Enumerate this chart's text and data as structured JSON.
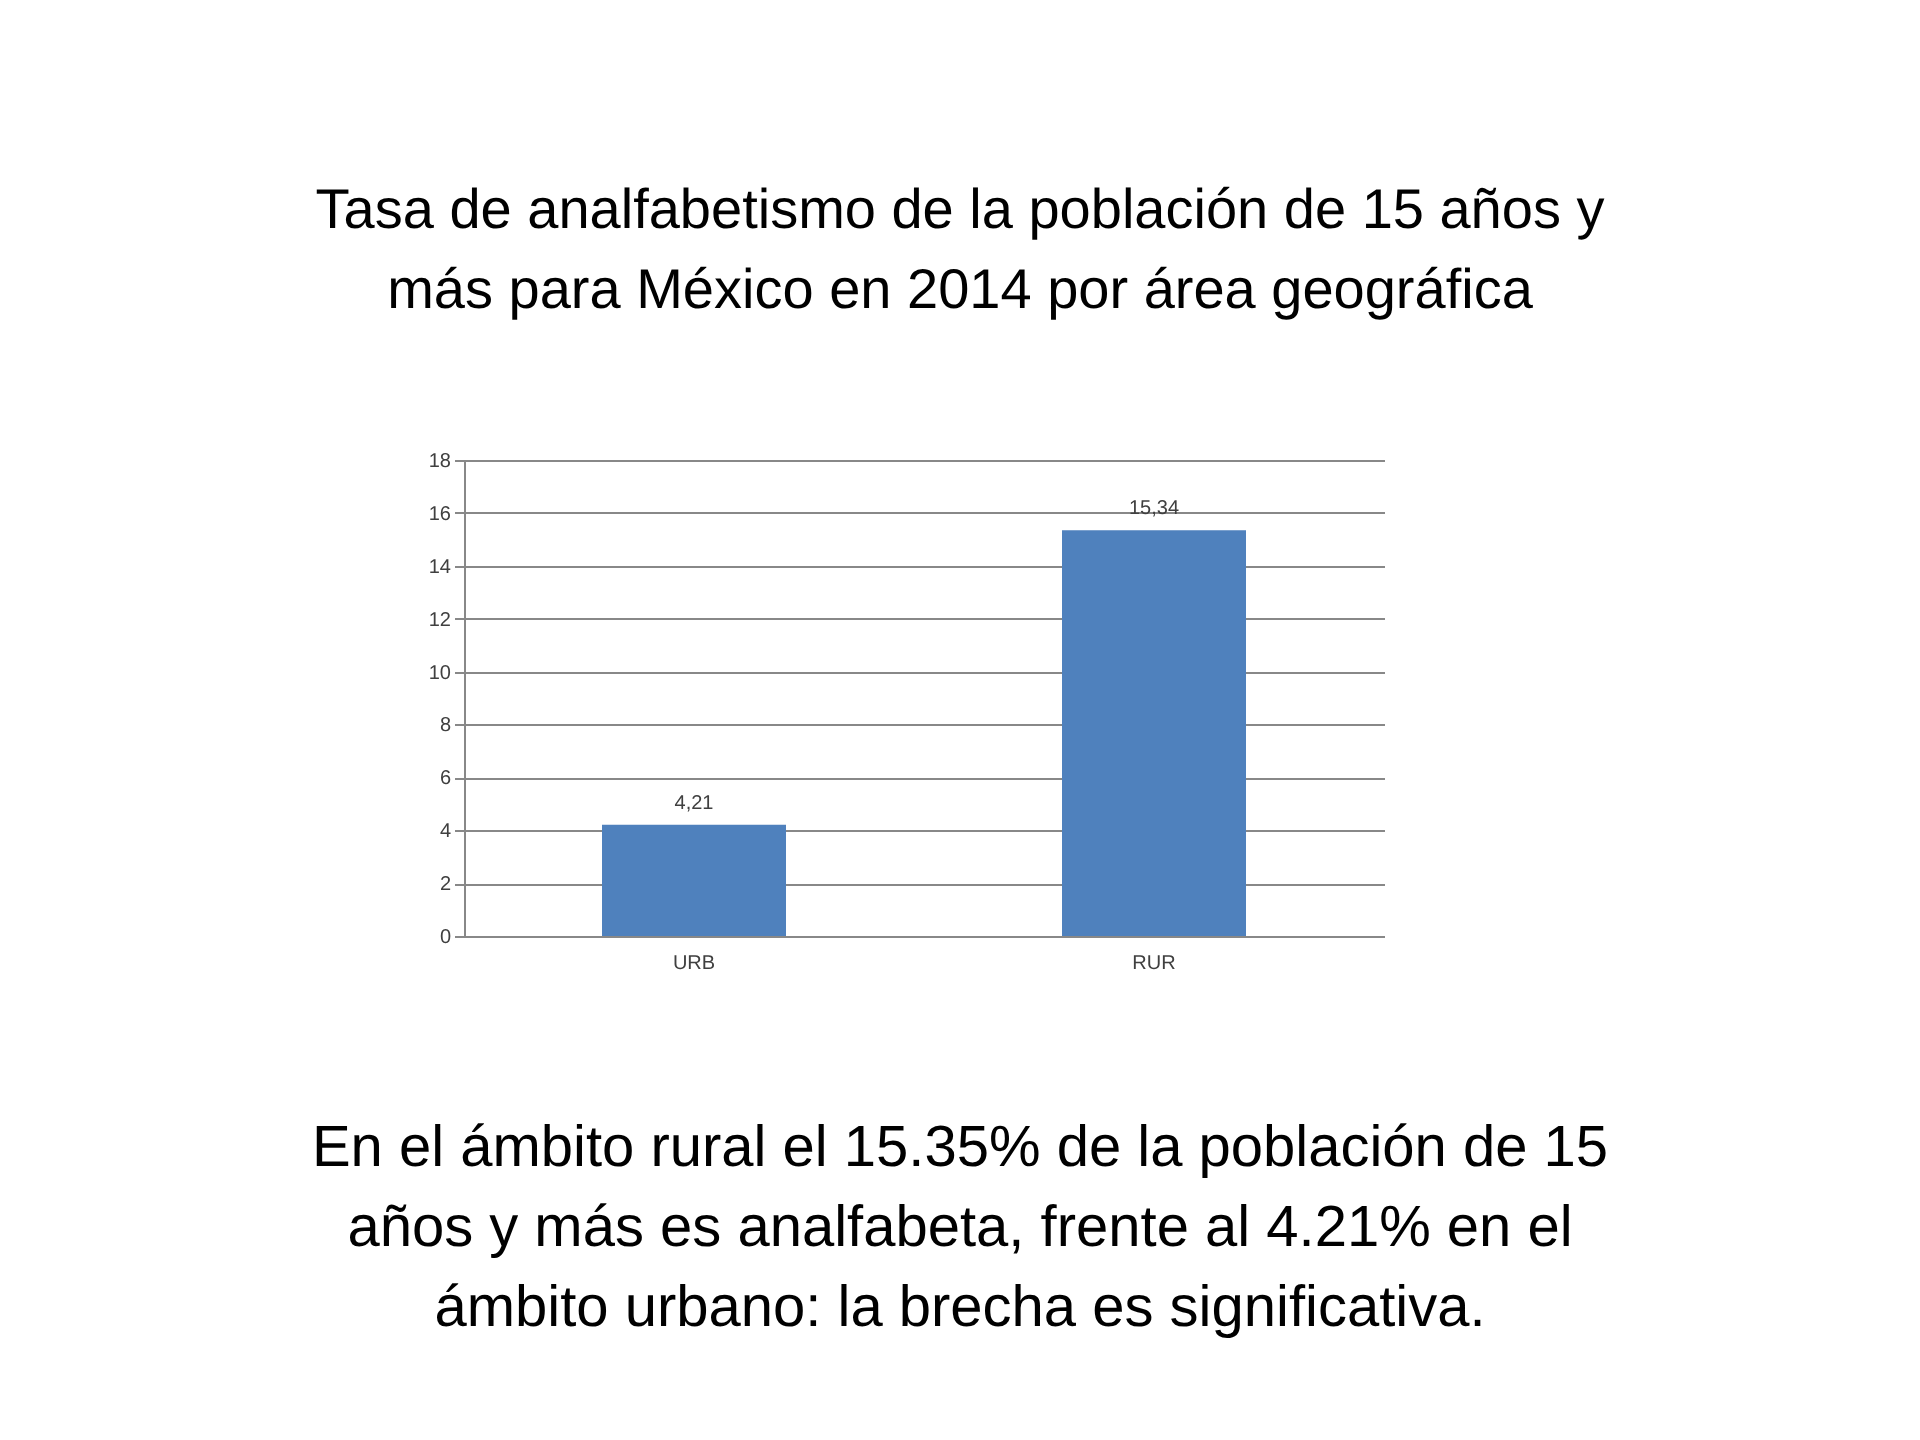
{
  "chart_data": {
    "type": "bar",
    "title": "Tasa de analfabetismo de la población de 15 años y más para México en 2014 por área geográfica",
    "categories": [
      "URB",
      "RUR"
    ],
    "values": [
      4.21,
      15.34
    ],
    "color": "#4f81bd",
    "value_labels": [
      "4,21",
      "15,34"
    ],
    "ylim": [
      0,
      18
    ],
    "yticks": [
      0,
      2,
      4,
      6,
      8,
      10,
      12,
      14,
      16,
      18
    ],
    "grid": "y",
    "annotations": [
      "En el ámbito rural el 15.35% de la población de 15 años y más es analfabeta, frente al 4.21% en el ámbito urbano: la brecha es significativa."
    ]
  }
}
